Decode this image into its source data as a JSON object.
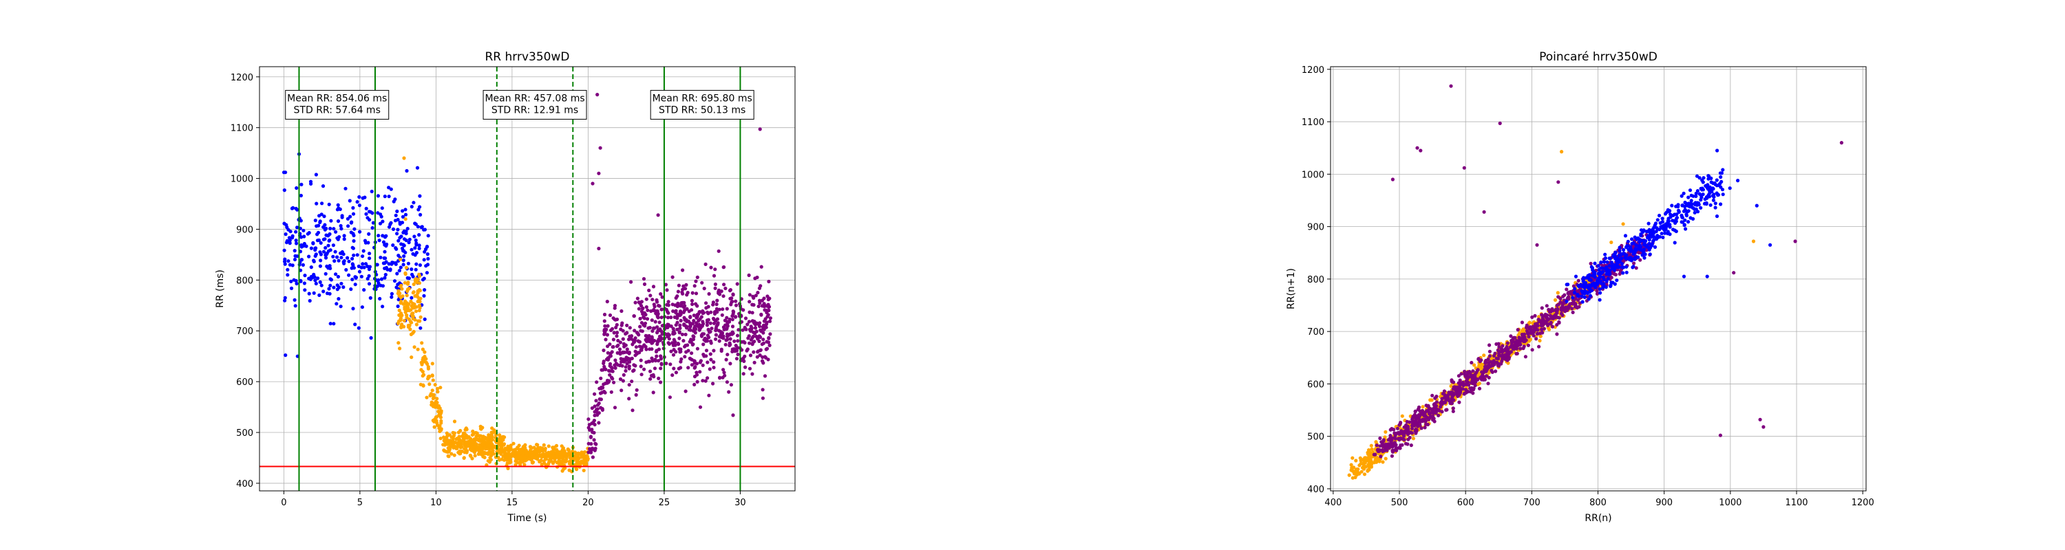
{
  "chart_data": [
    {
      "type": "scatter",
      "title": "RR hrrv350wD",
      "xlabel": "Time (s)",
      "ylabel": "RR (ms)",
      "xlim": [
        -1.6,
        33.6
      ],
      "ylim": [
        385,
        1220
      ],
      "xticks": [
        0,
        5,
        10,
        15,
        20,
        25,
        30
      ],
      "yticks": [
        400,
        500,
        600,
        700,
        800,
        900,
        1000,
        1100,
        1200
      ],
      "grid": true,
      "hline": {
        "y": 433,
        "color": "#ff0000"
      },
      "vlines": [
        {
          "x": 1,
          "style": "solid",
          "color": "#008000"
        },
        {
          "x": 6,
          "style": "solid",
          "color": "#008000"
        },
        {
          "x": 14,
          "style": "dashed",
          "color": "#008000"
        },
        {
          "x": 19,
          "style": "dashed",
          "color": "#008000"
        },
        {
          "x": 25,
          "style": "solid",
          "color": "#008000"
        },
        {
          "x": 30,
          "style": "solid",
          "color": "#008000"
        }
      ],
      "annotations": [
        {
          "x": 3.5,
          "y": 1145,
          "lines": [
            "Mean RR: 854.06 ms",
            "STD RR: 57.64 ms"
          ]
        },
        {
          "x": 16.5,
          "y": 1145,
          "lines": [
            "Mean RR: 457.08 ms",
            "STD RR: 12.91 ms"
          ]
        },
        {
          "x": 27.5,
          "y": 1145,
          "lines": [
            "Mean RR: 695.80 ms",
            "STD RR: 50.13 ms"
          ]
        }
      ],
      "series": [
        {
          "color": "#0000ff",
          "segments": [
            {
              "x0": 0,
              "x1": 9.5,
              "y0": 854,
              "y1": 854,
              "spread": 58,
              "n": 480
            }
          ],
          "outliers": [
            [
              1,
              1048
            ],
            [
              0.1,
              1012
            ],
            [
              0.9,
              650
            ]
          ]
        },
        {
          "color": "#ffa500",
          "segments": [
            {
              "x0": 7.5,
              "x1": 9.0,
              "y0": 730,
              "y1": 760,
              "spread": 35,
              "n": 120
            },
            {
              "x0": 9.0,
              "x1": 10.5,
              "y0": 640,
              "y1": 510,
              "spread": 25,
              "n": 90
            },
            {
              "x0": 10.5,
              "x1": 14.5,
              "y0": 478,
              "y1": 475,
              "spread": 14,
              "n": 350
            },
            {
              "x0": 14.5,
              "x1": 20.0,
              "y0": 458,
              "y1": 447,
              "spread": 10,
              "n": 400
            }
          ],
          "outliers": [
            [
              7.9,
              1040
            ],
            [
              8.0,
              920
            ]
          ]
        },
        {
          "color": "#800080",
          "segments": [
            {
              "x0": 20.0,
              "x1": 21.0,
              "y0": 470,
              "y1": 600,
              "spread": 30,
              "n": 60
            },
            {
              "x0": 21.0,
              "x1": 24.0,
              "y0": 650,
              "y1": 690,
              "spread": 45,
              "n": 220
            },
            {
              "x0": 24.0,
              "x1": 32.0,
              "y0": 700,
              "y1": 700,
              "spread": 50,
              "n": 650
            }
          ],
          "outliers": [
            [
              20.6,
              1165
            ],
            [
              20.8,
              1060
            ],
            [
              20.7,
              1010
            ],
            [
              20.3,
              990
            ],
            [
              24.6,
              928
            ],
            [
              31.3,
              1097
            ],
            [
              20.7,
              862
            ]
          ]
        }
      ]
    },
    {
      "type": "scatter",
      "title": "Poincaré hrrv350wD",
      "xlabel": "RR(n)",
      "ylabel": "RR(n+1)",
      "xlim": [
        396,
        1205
      ],
      "ylim": [
        396,
        1205
      ],
      "xticks": [
        400,
        500,
        600,
        700,
        800,
        900,
        1000,
        1100,
        1200
      ],
      "yticks": [
        400,
        500,
        600,
        700,
        800,
        900,
        1000,
        1100,
        1200
      ],
      "grid": true,
      "series": [
        {
          "color": "#ffa500",
          "segments": [
            {
              "x0": 432,
              "x1": 800,
              "y0": 432,
              "y1": 800,
              "spread": 14,
              "n": 900
            }
          ],
          "outliers": [
            [
              745,
              1043
            ],
            [
              1035,
              872
            ],
            [
              838,
              905
            ],
            [
              820,
              870
            ]
          ]
        },
        {
          "color": "#800080",
          "segments": [
            {
              "x0": 470,
              "x1": 870,
              "y0": 470,
              "y1": 870,
              "spread": 18,
              "n": 950
            }
          ],
          "outliers": [
            [
              578,
              1168
            ],
            [
              652,
              1097
            ],
            [
              527,
              1050
            ],
            [
              532,
              1045
            ],
            [
              598,
              1012
            ],
            [
              490,
              990
            ],
            [
              628,
              928
            ],
            [
              1168,
              1060
            ],
            [
              1098,
              872
            ],
            [
              985,
              502
            ],
            [
              1045,
              532
            ],
            [
              1050,
              518
            ],
            [
              1005,
              812
            ],
            [
              708,
              865
            ],
            [
              740,
              985
            ]
          ]
        },
        {
          "color": "#0000ff",
          "segments": [
            {
              "x0": 770,
              "x1": 990,
              "y0": 770,
              "y1": 990,
              "spread": 22,
              "n": 480
            }
          ],
          "outliers": [
            [
              1040,
              940
            ],
            [
              1060,
              865
            ],
            [
              980,
              1045
            ],
            [
              965,
              805
            ],
            [
              930,
              805
            ]
          ]
        }
      ]
    }
  ]
}
